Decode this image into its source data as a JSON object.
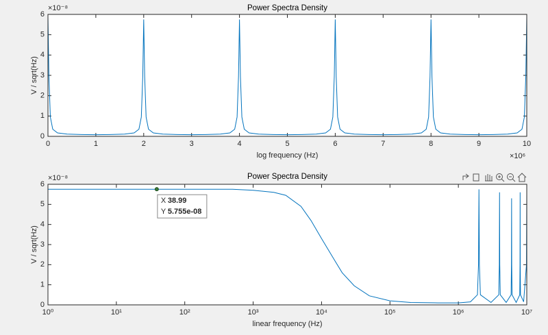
{
  "chart_data": [
    {
      "type": "line",
      "title": "Power Spectra Density",
      "xlabel": "log frequency (Hz)",
      "ylabel": "V / sqrt(Hz)",
      "x_multiplier": "×10⁶",
      "y_multiplier": "×10⁻⁸",
      "color": "#0072bd",
      "x": [
        0,
        0.02,
        0.05,
        0.1,
        0.2,
        0.4,
        0.7,
        1,
        1.3,
        1.6,
        1.8,
        1.9,
        1.95,
        1.98,
        2,
        2.02,
        2.05,
        2.1,
        2.2,
        2.4,
        2.7,
        3,
        3.3,
        3.6,
        3.8,
        3.9,
        3.95,
        3.98,
        4,
        4.02,
        4.05,
        4.1,
        4.2,
        4.4,
        4.7,
        5,
        5.3,
        5.6,
        5.8,
        5.9,
        5.95,
        5.98,
        6,
        6.02,
        6.05,
        6.1,
        6.2,
        6.4,
        6.7,
        7,
        7.3,
        7.6,
        7.8,
        7.9,
        7.95,
        7.98,
        8,
        8.02,
        8.05,
        8.1,
        8.2,
        8.4,
        8.7,
        9,
        9.3,
        9.6,
        9.8,
        9.9,
        9.95,
        9.98,
        10
      ],
      "values": [
        5.9,
        2.95,
        0.95,
        0.35,
        0.17,
        0.11,
        0.09,
        0.08,
        0.09,
        0.11,
        0.17,
        0.35,
        0.95,
        2.95,
        5.75,
        2.95,
        0.95,
        0.35,
        0.17,
        0.11,
        0.09,
        0.08,
        0.09,
        0.11,
        0.17,
        0.35,
        0.95,
        2.95,
        5.75,
        2.95,
        0.95,
        0.35,
        0.17,
        0.11,
        0.09,
        0.08,
        0.09,
        0.11,
        0.17,
        0.35,
        0.95,
        2.95,
        5.75,
        2.95,
        0.95,
        0.35,
        0.17,
        0.11,
        0.09,
        0.08,
        0.09,
        0.11,
        0.17,
        0.35,
        0.95,
        2.95,
        5.75,
        2.95,
        0.95,
        0.35,
        0.17,
        0.11,
        0.09,
        0.08,
        0.09,
        0.11,
        0.17,
        0.35,
        0.95,
        2.95,
        5.9
      ],
      "xlim": [
        0,
        10
      ],
      "xticks": [
        0,
        1,
        2,
        3,
        4,
        5,
        6,
        7,
        8,
        9,
        10
      ],
      "ylim": [
        0,
        6
      ],
      "yticks": [
        0,
        1,
        2,
        3,
        4,
        5,
        6
      ]
    },
    {
      "type": "line",
      "title": "Power Spectra Density",
      "xlabel": "linear frequency (Hz)",
      "ylabel": "V / sqrt(Hz)",
      "y_multiplier": "×10⁻⁸",
      "xscale": "log",
      "color": "#0072bd",
      "x": [
        1,
        2,
        5,
        10,
        20,
        50,
        100,
        200,
        500,
        1000,
        2000,
        3000,
        5000,
        7000,
        10000,
        15000,
        20000,
        30000,
        50000,
        100000,
        200000,
        500000,
        1000000,
        1500000,
        1900000,
        1970000,
        2000000,
        2030000,
        2100000,
        3000000,
        3900000,
        3970000,
        4000000,
        4030000,
        4100000,
        5000000,
        5900000,
        5970000,
        6000000,
        6030000,
        6100000,
        7000000,
        7900000,
        7970000,
        8000000,
        8030000,
        8100000,
        9000000,
        9900000,
        10000000
      ],
      "values": [
        5.755,
        5.755,
        5.755,
        5.755,
        5.755,
        5.755,
        5.755,
        5.755,
        5.755,
        5.7,
        5.6,
        5.45,
        4.9,
        4.2,
        3.3,
        2.3,
        1.6,
        0.95,
        0.45,
        0.2,
        0.12,
        0.1,
        0.1,
        0.15,
        0.5,
        2.0,
        5.75,
        2.0,
        0.5,
        0.12,
        0.5,
        2,
        5.6,
        2,
        0.5,
        0.12,
        0.5,
        2,
        5.3,
        2,
        0.5,
        0.12,
        0.5,
        2,
        5.6,
        2,
        0.5,
        0.15,
        2,
        5.6
      ],
      "xlim": [
        1,
        10000000
      ],
      "xticks": [
        {
          "value": 1,
          "label": "10⁰"
        },
        {
          "value": 10,
          "label": "10¹"
        },
        {
          "value": 100,
          "label": "10²"
        },
        {
          "value": 1000,
          "label": "10³"
        },
        {
          "value": 10000,
          "label": "10⁴"
        },
        {
          "value": 100000,
          "label": "10⁵"
        },
        {
          "value": 1000000,
          "label": "10⁶"
        },
        {
          "value": 10000000,
          "label": "10⁷"
        }
      ],
      "ylim": [
        0,
        6
      ],
      "yticks": [
        0,
        1,
        2,
        3,
        4,
        5,
        6
      ],
      "datatip": {
        "x_label": "X",
        "x": 38.99,
        "y_label": "Y",
        "y": 5.755,
        "y_value_label": "5.755e-08"
      }
    }
  ]
}
